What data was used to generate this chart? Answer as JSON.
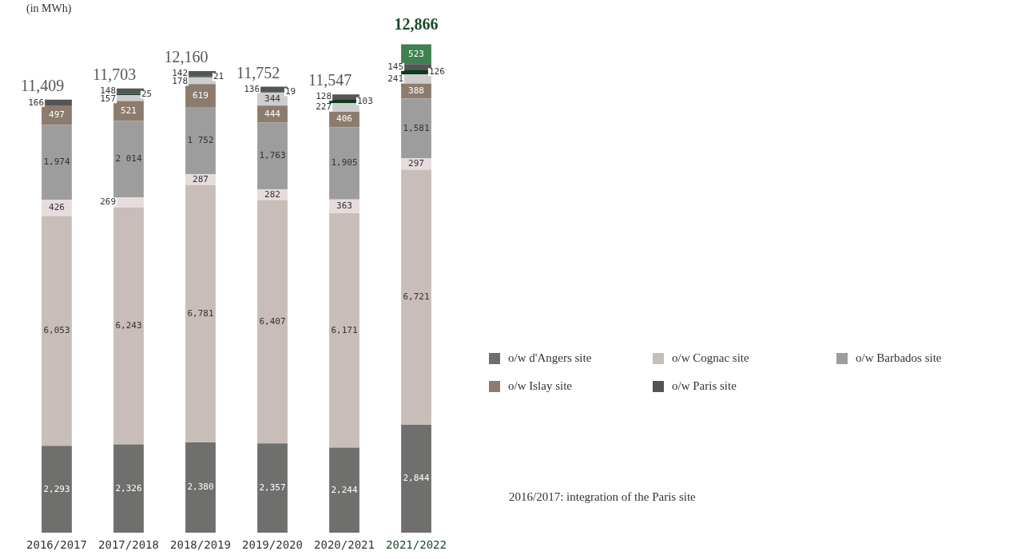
{
  "chart_data": {
    "type": "bar",
    "stacked": true,
    "ylabel": "(in MWh)",
    "categories": [
      "2016/2017",
      "2017/2018",
      "2018/2019",
      "2019/2020",
      "2020/2021",
      "2021/2022"
    ],
    "series": [
      {
        "name": "o/w d'Angers site",
        "color": "#6f6f6d",
        "values": [
          2293,
          2326,
          2380,
          2357,
          2244,
          2844
        ],
        "value_labels": [
          "2,293",
          "2,326",
          "2,380",
          "2,357",
          "2,244",
          "2,844"
        ]
      },
      {
        "name": "o/w Cognac site",
        "color": "#c9bdb9",
        "values": [
          6053,
          6243,
          6781,
          6407,
          6171,
          6721
        ],
        "value_labels": [
          "6,053",
          "6,243",
          "6,781",
          "6,407",
          "6,171",
          "6,721"
        ]
      },
      {
        "color": "#e6dcdb",
        "values": [
          426,
          269,
          287,
          282,
          363,
          297
        ],
        "value_labels": [
          "426",
          "269",
          "287",
          "282",
          "363",
          "297"
        ]
      },
      {
        "name": "o/w Barbados site",
        "color": "#9d9d9d",
        "values": [
          1974,
          2014,
          1752,
          1763,
          1905,
          1581
        ],
        "value_labels": [
          "1,974",
          "2 014",
          "1 752",
          "1,763",
          "1,905",
          "1,581"
        ]
      },
      {
        "name": "o/w Islay site",
        "color": "#8c7c6d",
        "values": [
          497,
          521,
          619,
          444,
          406,
          388
        ],
        "value_labels": [
          "497",
          "521",
          "619",
          "444",
          "406",
          "388"
        ]
      },
      {
        "color": "#cdcdcd",
        "values": [
          null,
          157,
          178,
          344,
          227,
          241
        ],
        "value_labels": [
          null,
          "157",
          "178",
          "344",
          "227",
          "241"
        ]
      },
      {
        "color": "#0d3b1c",
        "values": [
          null,
          25,
          21,
          19,
          103,
          126
        ],
        "value_labels": [
          null,
          "25",
          "21",
          "19",
          "103",
          "126"
        ]
      },
      {
        "name": "o/w Paris site",
        "color": "#555555",
        "values": [
          166,
          148,
          142,
          136,
          128,
          145
        ],
        "value_labels": [
          "166",
          "148",
          "142",
          "136",
          "128",
          "145"
        ]
      },
      {
        "color": "#3f8151",
        "values": [
          null,
          null,
          null,
          null,
          null,
          523
        ],
        "value_labels": [
          null,
          null,
          null,
          null,
          null,
          "523"
        ]
      }
    ],
    "totals": [
      "11,409",
      "11,703",
      "12,160",
      "11,752",
      "11,547",
      "12,866"
    ],
    "legend": "right",
    "grid": false,
    "annotations": [
      "2016/2017: integration of the Paris site"
    ]
  }
}
